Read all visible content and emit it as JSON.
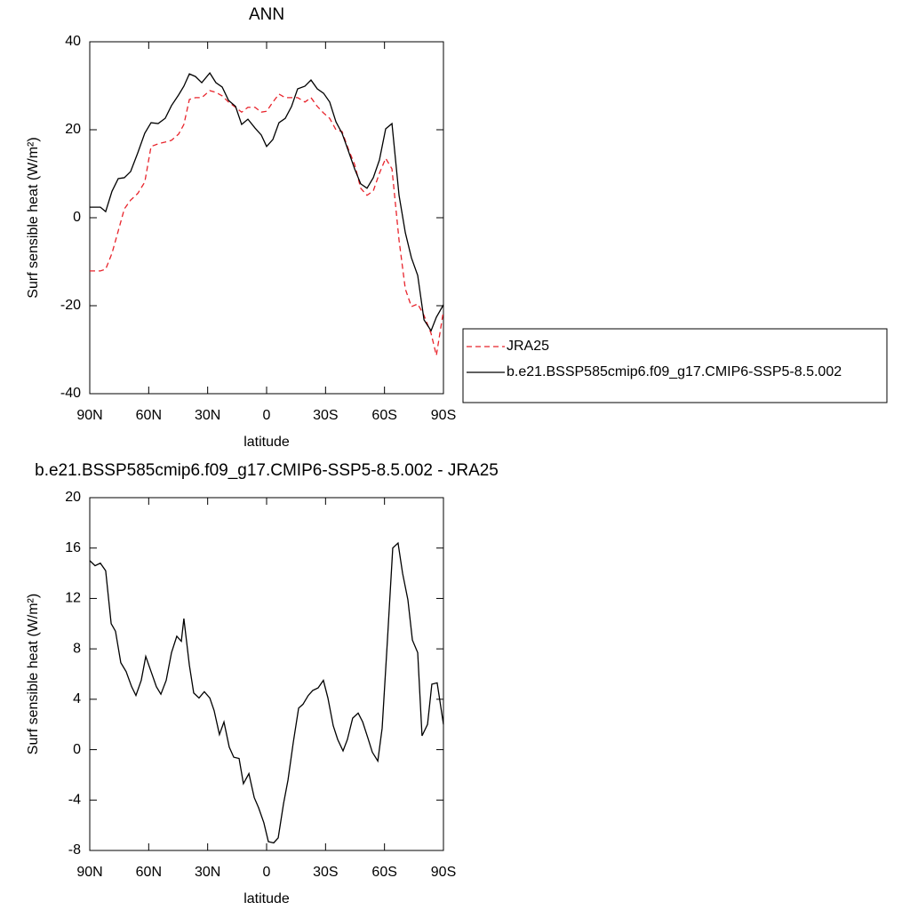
{
  "chart_data": [
    {
      "type": "line",
      "title": "ANN",
      "x_label": "latitude",
      "y_label": "Surf sensible heat (W/m²)",
      "x": [
        90,
        84.6,
        81.9,
        78.7,
        75.5,
        72.4,
        69.2,
        65.6,
        62,
        58.8,
        55.2,
        51.6,
        48.4,
        44.8,
        42.1,
        39.3,
        36.2,
        33,
        28.9,
        25.8,
        22.6,
        19.4,
        15.8,
        12.7,
        9.5,
        5.9,
        2.7,
        0,
        -3.2,
        -6.3,
        -9.5,
        -12.7,
        -15.8,
        -19.5,
        -22.6,
        -25.8,
        -29,
        -32.1,
        -35.3,
        -38.4,
        -41.6,
        -44.8,
        -47.9,
        -51.1,
        -54.3,
        -57.4,
        -60.6,
        -63.8,
        -67.4,
        -70.6,
        -73.7,
        -76.9,
        -80.1,
        -83.7,
        -86.4,
        -90
      ],
      "series": [
        {
          "name": "JRA25",
          "color": "#e8232b",
          "line_style": "dashed",
          "values": [
            -12.1,
            -12.1,
            -11.7,
            -8.1,
            -3,
            2,
            4,
            5.5,
            8.1,
            16.2,
            16.8,
            17.2,
            17.6,
            19,
            21.2,
            26.9,
            27.3,
            27.3,
            28.9,
            28.5,
            27.7,
            26.3,
            25.1,
            24,
            25.1,
            25.1,
            24,
            24.2,
            26.3,
            28.1,
            27.3,
            27.3,
            27.3,
            26.3,
            27.3,
            25.3,
            23.8,
            22.6,
            20,
            19.6,
            15.6,
            12.1,
            6.7,
            5.1,
            6.1,
            10.1,
            13.5,
            11.1,
            -5.1,
            -16.2,
            -20.2,
            -19.6,
            -22.2,
            -26.3,
            -31.3,
            -21.2
          ]
        },
        {
          "name": "b.e21.BSSP585cmip6.f09_g17.CMIP6-SSP5-8.5.002",
          "color": "#000000",
          "line_style": "solid",
          "values": [
            2.4,
            2.4,
            1.4,
            6,
            8.9,
            9.1,
            10.5,
            14.7,
            19.2,
            21.6,
            21.4,
            22.6,
            25.5,
            27.9,
            29.9,
            32.7,
            32.1,
            30.7,
            32.9,
            30.7,
            29.7,
            26.7,
            25.3,
            21.2,
            22.4,
            20.4,
            18.8,
            16.2,
            17.8,
            21.6,
            22.6,
            25.3,
            29.3,
            29.9,
            31.3,
            29.3,
            28.3,
            26.3,
            21.8,
            19.2,
            15.2,
            11.1,
            7.7,
            6.7,
            9.1,
            13.1,
            20.2,
            21.4,
            5.1,
            -3.4,
            -9.1,
            -13.1,
            -23.2,
            -25.7,
            -22.6,
            -19.8
          ]
        }
      ],
      "xlim": [
        90,
        -90
      ],
      "xticks": [
        {
          "value": 90,
          "label": "90N"
        },
        {
          "value": 60,
          "label": "60N"
        },
        {
          "value": 30,
          "label": "30N"
        },
        0,
        {
          "value": -30,
          "label": "30S"
        },
        {
          "value": -60,
          "label": "60S"
        },
        {
          "value": -90,
          "label": "90S"
        }
      ],
      "ylim": [
        -40,
        40
      ],
      "yticks": [
        -40,
        -20,
        0,
        20,
        40
      ],
      "legend": "right"
    },
    {
      "type": "line",
      "title": "b.e21.BSSP585cmip6.f09_g17.CMIP6-SSP5-8.5.002 - JRA25",
      "x_label": "latitude",
      "y_label": "Surf sensible heat (W/m²)",
      "x": [
        90,
        87.3,
        84.6,
        81.9,
        79.1,
        76.9,
        74.2,
        71.5,
        68.7,
        66.5,
        63.8,
        61.5,
        58.8,
        56.1,
        53.8,
        51.1,
        48.4,
        45.7,
        43.4,
        42.1,
        39.3,
        37.1,
        34.4,
        31.7,
        28.9,
        26.7,
        24,
        21.7,
        19,
        16.7,
        14,
        11.8,
        9,
        6.3,
        4.1,
        1.4,
        -0.9,
        -3.6,
        -5.9,
        -8.6,
        -10.9,
        -13.6,
        -16.3,
        -18.5,
        -21.2,
        -23.5,
        -26.2,
        -28.9,
        -31.2,
        -33.9,
        -36.2,
        -38.9,
        -41.1,
        -43.8,
        -46.6,
        -48.9,
        -51.6,
        -53.8,
        -56.6,
        -58.8,
        -61.5,
        -64.2,
        -66.9,
        -69.2,
        -71.9,
        -74.2,
        -76.9,
        -79.1,
        -81.9,
        -84.1,
        -86.8,
        -90
      ],
      "series": [
        {
          "color": "#000000",
          "line_style": "solid",
          "values": [
            15,
            14.6,
            14.8,
            14.2,
            10,
            9.4,
            6.9,
            6.2,
            5,
            4.3,
            5.5,
            7.4,
            6.2,
            5,
            4.4,
            5.5,
            7.7,
            9,
            8.6,
            10.4,
            6.7,
            4.5,
            4.1,
            4.6,
            4.1,
            3.1,
            1.2,
            2.2,
            0.2,
            -0.6,
            -0.7,
            -2.7,
            -1.9,
            -3.8,
            -4.6,
            -5.8,
            -7.3,
            -7.4,
            -7,
            -4.3,
            -2.4,
            0.6,
            3.3,
            3.6,
            4.3,
            4.7,
            4.9,
            5.5,
            4.1,
            1.9,
            0.8,
            -0.1,
            0.8,
            2.5,
            2.9,
            2.2,
            0.9,
            -0.2,
            -0.9,
            1.7,
            8.7,
            16,
            16.4,
            14,
            11.9,
            8.7,
            7.7,
            1.1,
            2,
            5.2,
            5.3,
            2
          ]
        }
      ],
      "xlim": [
        90,
        -90
      ],
      "xticks": [
        {
          "value": 90,
          "label": "90N"
        },
        {
          "value": 60,
          "label": "60N"
        },
        {
          "value": 30,
          "label": "30N"
        },
        0,
        {
          "value": -30,
          "label": "30S"
        },
        {
          "value": -60,
          "label": "60S"
        },
        {
          "value": -90,
          "label": "90S"
        }
      ],
      "ylim": [
        -8,
        20
      ],
      "yticks": [
        -8,
        -4,
        0,
        4,
        8,
        12,
        16,
        20
      ]
    }
  ]
}
